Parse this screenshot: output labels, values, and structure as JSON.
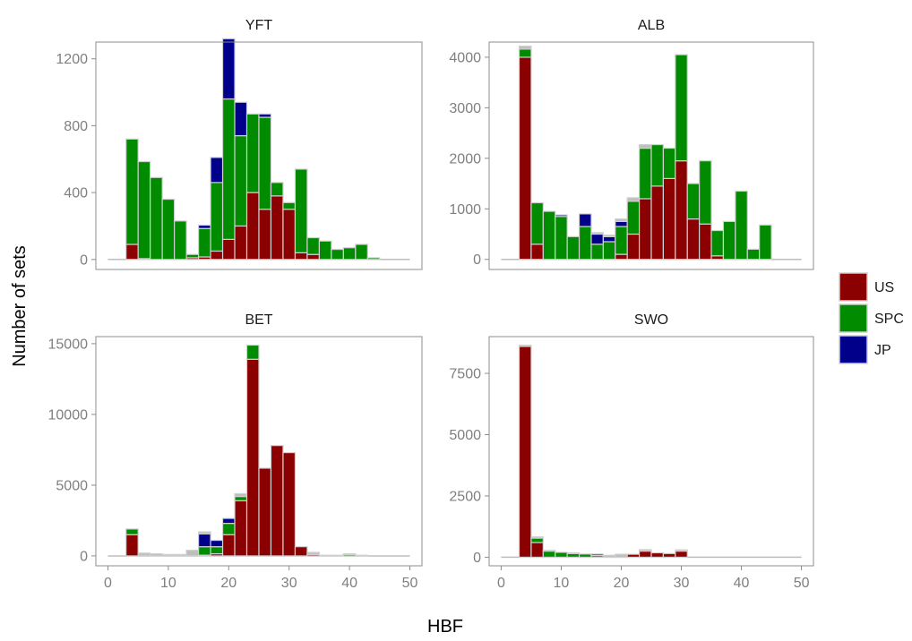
{
  "chart_data": {
    "type": "bar",
    "stacked": true,
    "facets": [
      "YFT",
      "ALB",
      "BET",
      "SWO"
    ],
    "xlabel": "HBF",
    "ylabel": "Number of sets",
    "x_ticks": [
      0,
      10,
      20,
      30,
      40,
      50
    ],
    "xlim": [
      -2,
      52
    ],
    "bin_width": 2,
    "bins": [
      4,
      6,
      8,
      10,
      12,
      14,
      16,
      18,
      20,
      22,
      24,
      26,
      28,
      30,
      32,
      34,
      36,
      38,
      40,
      42,
      44
    ],
    "legend": {
      "position": "right",
      "entries": [
        {
          "name": "US",
          "color": "#8B0000"
        },
        {
          "name": "SPC",
          "color": "#008B00"
        },
        {
          "name": "JP",
          "color": "#00008B"
        }
      ]
    },
    "colors": {
      "US": "#8B0000",
      "SPC": "#008B00",
      "JP": "#00008B",
      "other": "#BEBEBE"
    },
    "panels": [
      {
        "title": "YFT",
        "ylim": [
          -60,
          1300
        ],
        "y_ticks": [
          0,
          400,
          800,
          1200
        ],
        "series": {
          "US": [
            90,
            5,
            0,
            0,
            0,
            10,
            15,
            50,
            120,
            200,
            400,
            300,
            380,
            300,
            40,
            30,
            0,
            0,
            0,
            0,
            0
          ],
          "SPC": [
            630,
            580,
            490,
            360,
            230,
            20,
            170,
            410,
            840,
            540,
            470,
            550,
            80,
            40,
            500,
            100,
            110,
            60,
            70,
            90,
            10
          ],
          "JP": [
            0,
            0,
            0,
            0,
            0,
            0,
            20,
            150,
            360,
            200,
            0,
            20,
            0,
            0,
            0,
            0,
            0,
            0,
            0,
            0,
            0
          ],
          "other": [
            0,
            0,
            0,
            0,
            0,
            0,
            0,
            0,
            0,
            0,
            0,
            0,
            0,
            0,
            0,
            0,
            0,
            0,
            0,
            0,
            0
          ]
        }
      },
      {
        "title": "ALB",
        "ylim": [
          -200,
          4300
        ],
        "y_ticks": [
          0,
          1000,
          2000,
          3000,
          4000
        ],
        "series": {
          "US": [
            4000,
            300,
            0,
            0,
            0,
            0,
            0,
            0,
            100,
            500,
            1200,
            1450,
            1600,
            1950,
            800,
            700,
            70,
            0,
            0,
            0,
            0
          ],
          "SPC": [
            160,
            820,
            950,
            850,
            450,
            650,
            300,
            350,
            550,
            650,
            1000,
            820,
            600,
            2100,
            700,
            1250,
            500,
            750,
            1350,
            200,
            680
          ],
          "JP": [
            0,
            0,
            0,
            30,
            0,
            250,
            200,
            100,
            100,
            0,
            0,
            0,
            0,
            0,
            0,
            0,
            0,
            0,
            0,
            0,
            0
          ],
          "other": [
            60,
            0,
            0,
            0,
            0,
            0,
            30,
            30,
            50,
            70,
            70,
            0,
            0,
            0,
            0,
            0,
            0,
            0,
            0,
            0,
            0
          ]
        }
      },
      {
        "title": "BET",
        "ylim": [
          -700,
          15500
        ],
        "y_ticks": [
          0,
          5000,
          10000,
          15000
        ],
        "series": {
          "US": [
            1500,
            0,
            0,
            0,
            0,
            0,
            50,
            150,
            1500,
            3900,
            13900,
            6200,
            7800,
            7300,
            650,
            100,
            0,
            0,
            0,
            0,
            0
          ],
          "SPC": [
            400,
            0,
            0,
            0,
            0,
            0,
            600,
            500,
            800,
            300,
            1000,
            0,
            0,
            0,
            0,
            0,
            0,
            0,
            100,
            0,
            0
          ],
          "JP": [
            0,
            0,
            0,
            0,
            0,
            0,
            900,
            450,
            350,
            0,
            0,
            0,
            0,
            0,
            0,
            0,
            0,
            0,
            0,
            0,
            0
          ],
          "other": [
            0,
            200,
            150,
            100,
            100,
            400,
            150,
            0,
            0,
            200,
            0,
            0,
            0,
            0,
            0,
            150,
            50,
            50,
            50,
            50,
            0
          ]
        }
      },
      {
        "title": "SWO",
        "ylim": [
          -350,
          9000
        ],
        "y_ticks": [
          0,
          2500,
          5000,
          7500
        ],
        "series": {
          "US": [
            8600,
            600,
            0,
            0,
            0,
            0,
            0,
            0,
            0,
            120,
            250,
            180,
            150,
            250,
            0,
            0,
            0,
            0,
            0,
            0,
            0
          ],
          "SPC": [
            0,
            180,
            250,
            200,
            150,
            130,
            70,
            0,
            0,
            0,
            0,
            0,
            0,
            0,
            0,
            0,
            0,
            0,
            0,
            0,
            0
          ],
          "JP": [
            0,
            0,
            0,
            0,
            0,
            0,
            60,
            0,
            0,
            0,
            0,
            0,
            0,
            0,
            0,
            0,
            0,
            0,
            0,
            0,
            0
          ],
          "other": [
            50,
            50,
            30,
            0,
            30,
            0,
            0,
            80,
            120,
            0,
            60,
            0,
            0,
            50,
            0,
            0,
            0,
            0,
            0,
            0,
            0
          ]
        }
      }
    ]
  }
}
